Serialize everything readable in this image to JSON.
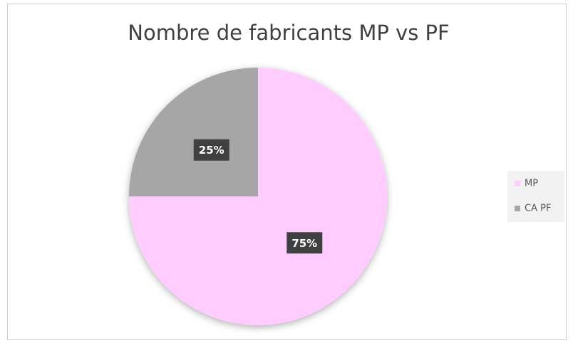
{
  "chart_data": {
    "type": "pie",
    "title": "Nombre de fabricants MP vs PF",
    "categories": [
      "MP",
      "CA PF"
    ],
    "values": [
      75,
      25
    ],
    "value_labels": [
      "75%",
      "25%"
    ],
    "colors": [
      "#ffccff",
      "#a6a6a6"
    ],
    "legend": "right"
  }
}
